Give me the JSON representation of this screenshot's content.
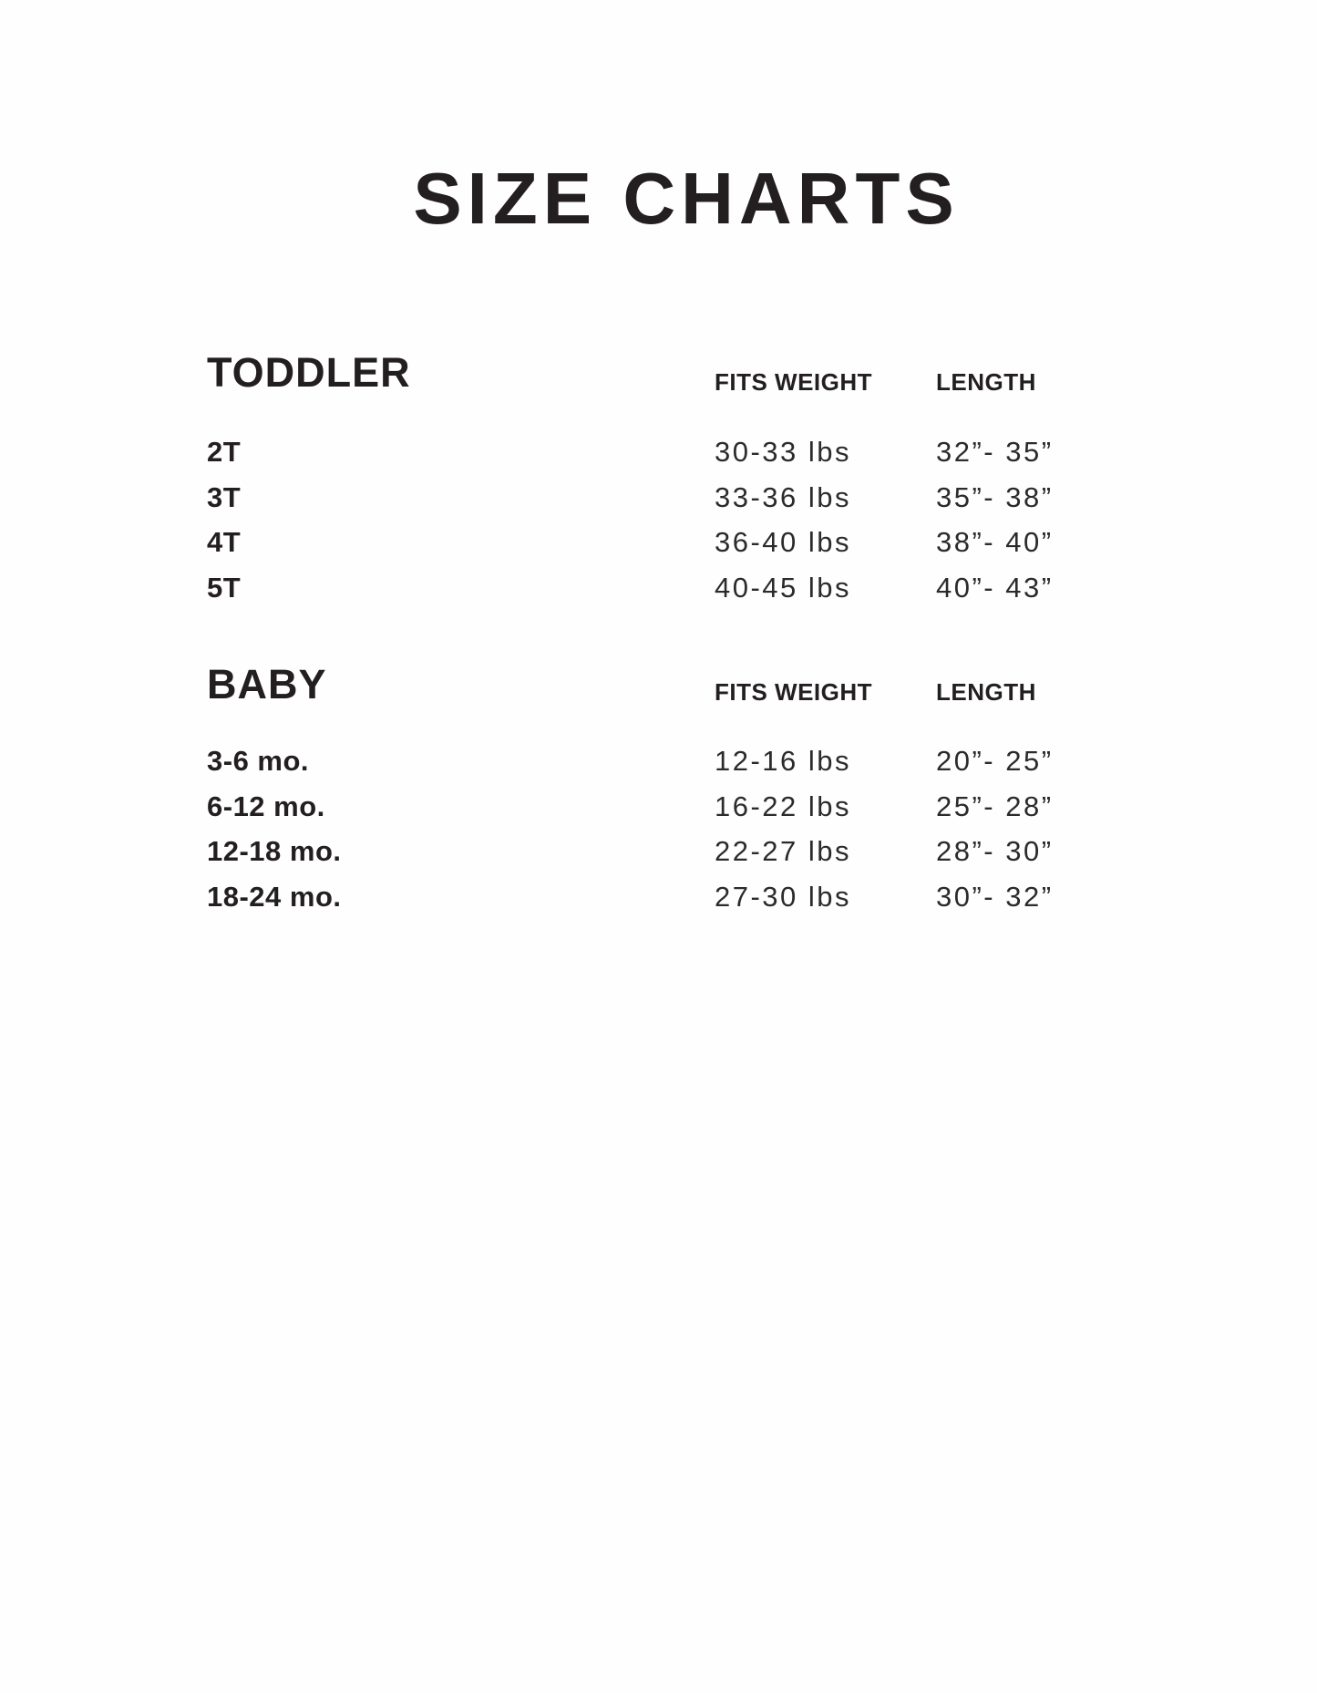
{
  "title": "SIZE CHARTS",
  "sections": [
    {
      "name": "TODDLER",
      "columns": [
        "FITS WEIGHT",
        "LENGTH"
      ],
      "rows": [
        {
          "size": "2T",
          "weight": "30-33 lbs",
          "length": "32”- 35”"
        },
        {
          "size": "3T",
          "weight": "33-36 lbs",
          "length": "35”- 38”"
        },
        {
          "size": "4T",
          "weight": "36-40 lbs",
          "length": "38”- 40”"
        },
        {
          "size": "5T",
          "weight": "40-45 lbs",
          "length": "40”- 43”"
        }
      ]
    },
    {
      "name": "BABY",
      "columns": [
        "FITS WEIGHT",
        "LENGTH"
      ],
      "rows": [
        {
          "size": "3-6 mo.",
          "weight": "12-16 lbs",
          "length": "20”- 25”"
        },
        {
          "size": "6-12 mo.",
          "weight": "16-22 lbs",
          "length": "25”- 28”"
        },
        {
          "size": "12-18 mo.",
          "weight": "22-27 lbs",
          "length": "28”- 30”"
        },
        {
          "size": "18-24 mo.",
          "weight": "27-30 lbs",
          "length": "30”- 32”"
        }
      ]
    }
  ]
}
